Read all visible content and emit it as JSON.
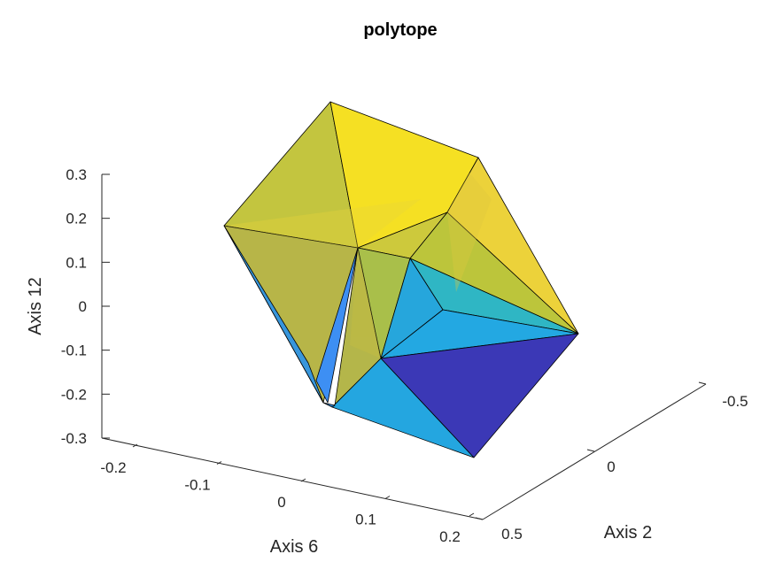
{
  "chart_data": {
    "type": "polytope-3d",
    "title": "polytope",
    "xlabel": "Axis 6",
    "ylabel": "Axis 2",
    "zlabel": "Axis 12",
    "x_ticks": [
      "-0.2",
      "-0.1",
      "0",
      "0.1",
      "0.2"
    ],
    "y_ticks": [
      "-0.5",
      "0",
      "0.5"
    ],
    "z_ticks": [
      "-0.3",
      "-0.2",
      "-0.1",
      "0",
      "0.1",
      "0.2",
      "0.3"
    ],
    "colormap": "parula",
    "colors": {
      "yellow": "#f9e21e",
      "olive": "#c5c93a",
      "teal": "#2bb5b8",
      "cyan": "#22a8e0",
      "blue": "#3c8ef4",
      "indigo": "#3a36b8"
    }
  }
}
